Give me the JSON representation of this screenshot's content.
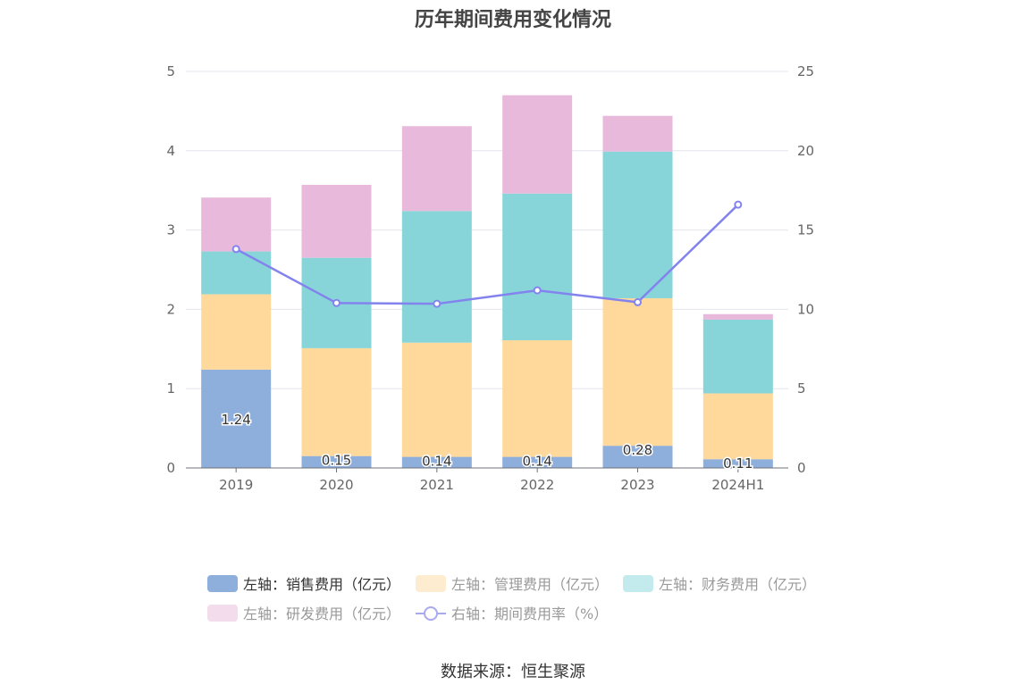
{
  "chart_data": {
    "type": "bar",
    "title": "历年期间费用变化情况",
    "categories": [
      "2019",
      "2020",
      "2021",
      "2022",
      "2023",
      "2024H1"
    ],
    "left_axis": {
      "ylim": [
        0,
        5
      ],
      "ticks": [
        "0",
        "1",
        "2",
        "3",
        "4",
        "5"
      ]
    },
    "right_axis": {
      "ylim": [
        0,
        25
      ],
      "ticks": [
        "0",
        "5",
        "10",
        "15",
        "20",
        "25"
      ]
    },
    "series": [
      {
        "name": "左轴：销售费用（亿元）",
        "axis": "left",
        "stack": true,
        "color": "#8eaedb",
        "values": [
          1.24,
          0.15,
          0.14,
          0.14,
          0.28,
          0.11
        ],
        "labels": [
          "1.24",
          "0.15",
          "0.14",
          "0.14",
          "0.28",
          "0.11"
        ]
      },
      {
        "name": "左轴：管理费用（亿元）",
        "axis": "left",
        "stack": true,
        "color": "#ffd99b",
        "values": [
          0.95,
          1.36,
          1.44,
          1.47,
          1.86,
          0.83
        ]
      },
      {
        "name": "左轴：财务费用（亿元）",
        "axis": "left",
        "stack": true,
        "color": "#87d5d9",
        "values": [
          0.54,
          1.14,
          1.66,
          1.85,
          1.85,
          0.93
        ]
      },
      {
        "name": "左轴：研发费用（亿元）",
        "axis": "left",
        "stack": true,
        "color": "#e8b9db",
        "values": [
          0.68,
          0.92,
          1.07,
          1.24,
          0.45,
          0.07
        ]
      },
      {
        "name": "右轴：期间费用率（%）",
        "axis": "right",
        "type": "line",
        "color": "#8383ee",
        "values": [
          13.8,
          10.4,
          10.35,
          11.2,
          10.45,
          16.6
        ]
      }
    ],
    "legend_position": "bottom"
  },
  "source": "数据来源：恒生聚源"
}
